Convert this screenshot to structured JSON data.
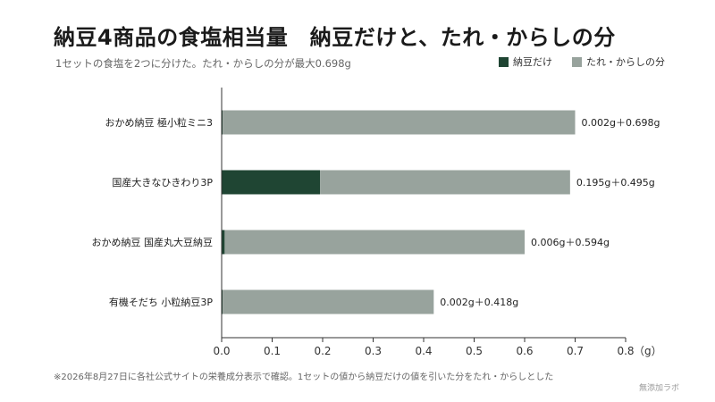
{
  "title": "納豆4商品の食塩相当量　納豆だけと、たれ・からしの分",
  "subtitle": "1セットの食塩を2つに分けた。たれ・からしの分が最大0.698g",
  "footnote": "※2026年8月27日に各社公式サイトの栄養成分表示で確認。1セットの値から納豆だけの値を引いた分をたれ・からしとした",
  "credit": "無添加ラボ",
  "colors": {
    "natto": "#1f4533",
    "sauce": "#98a39d"
  },
  "chart_data": {
    "type": "bar",
    "orientation": "horizontal",
    "stacked": true,
    "categories": [
      "おかめ納豆 極小粒ミニ3",
      "国産大きなひきわり3P",
      "おかめ納豆 国産丸大豆納豆",
      "有機そだち 小粒納豆3P"
    ],
    "series": [
      {
        "name": "納豆だけ",
        "values": [
          0.002,
          0.195,
          0.006,
          0.002
        ]
      },
      {
        "name": "たれ・からしの分",
        "values": [
          0.698,
          0.495,
          0.594,
          0.418
        ]
      }
    ],
    "data_labels": [
      "0.002g＋0.698g",
      "0.195g＋0.495g",
      "0.006g＋0.594g",
      "0.002g＋0.418g"
    ],
    "xlim": [
      0,
      0.8
    ],
    "xticks": [
      "0.0",
      "0.1",
      "0.2",
      "0.3",
      "0.4",
      "0.5",
      "0.6",
      "0.7",
      "0.8"
    ],
    "xunit": "（g）",
    "legend_position": "top-right",
    "grid": false
  }
}
